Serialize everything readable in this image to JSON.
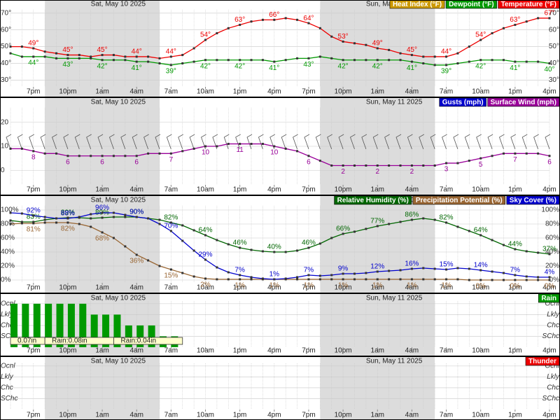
{
  "time_axis": {
    "categories": [
      null,
      null,
      "7pm",
      null,
      null,
      "10pm",
      null,
      null,
      "1am",
      null,
      null,
      "4am",
      null,
      null,
      "7am",
      null,
      null,
      "10am",
      null,
      null,
      "1pm",
      null,
      null,
      "4pm",
      null,
      null,
      "7pm",
      null,
      null,
      "10pm",
      null,
      null,
      "1am",
      null,
      null,
      "4am",
      null,
      null,
      "7am",
      null,
      null,
      "10am",
      null,
      null,
      "1pm",
      null,
      null,
      "4pm"
    ],
    "dates": [
      {
        "value": 7,
        "label": "Sat, May 10 2025"
      },
      {
        "value": 31,
        "label": "Sun, May 11 2025"
      }
    ],
    "night": [
      [
        3,
        13
      ],
      [
        27,
        37
      ]
    ]
  },
  "chart_data": [
    {
      "type": "line",
      "ylim": [
        26,
        72
      ],
      "grid": true,
      "right_axis": true,
      "yticks": [
        {
          "value": 30,
          "label": "30°"
        },
        {
          "value": 40,
          "label": "40°"
        },
        {
          "value": 50,
          "label": "50°"
        },
        {
          "value": 60,
          "label": "60°"
        },
        {
          "value": 70,
          "label": "70°"
        }
      ],
      "series": [
        {
          "name": "Heat Index (°F)",
          "color": "#cc9900",
          "values": [
            null,
            null,
            null,
            null,
            null,
            null,
            null,
            null,
            null,
            null,
            null,
            null,
            null,
            null,
            null,
            null,
            null,
            null,
            null,
            null,
            null,
            null,
            null,
            null,
            null,
            null,
            null,
            null,
            null,
            null,
            null,
            null,
            null,
            null,
            null,
            null,
            null,
            null,
            null,
            null,
            null,
            null,
            null,
            null,
            null,
            null,
            null,
            null
          ]
        },
        {
          "name": "Dewpoint (°F)",
          "color": "#009900",
          "label_side": "below",
          "values": [
            46,
            44,
            44,
            44,
            43,
            43,
            43,
            43,
            42,
            42,
            42,
            41,
            41,
            40,
            39,
            40,
            41,
            42,
            42,
            42,
            42,
            42,
            42,
            41,
            42,
            43,
            43,
            44,
            43,
            42,
            42,
            42,
            42,
            42,
            42,
            41,
            40,
            39,
            39,
            40,
            41,
            42,
            42,
            42,
            41,
            41,
            41,
            40
          ],
          "value_labels": [
            null,
            null,
            "44°",
            null,
            null,
            "43°",
            null,
            null,
            "42°",
            null,
            null,
            "41°",
            null,
            null,
            "39°",
            null,
            null,
            "42°",
            null,
            null,
            "42°",
            null,
            null,
            "41°",
            null,
            null,
            "43°",
            null,
            null,
            "42°",
            null,
            null,
            "42°",
            null,
            null,
            "41°",
            null,
            null,
            "39°",
            null,
            null,
            "42°",
            null,
            null,
            "41°",
            null,
            null,
            "40°"
          ]
        },
        {
          "name": "Temperature (°F)",
          "color": "#ee0000",
          "label_side": "above",
          "values": [
            50,
            50,
            49,
            47,
            46,
            45,
            45,
            44,
            45,
            45,
            44,
            44,
            44,
            43,
            44,
            45,
            49,
            54,
            58,
            61,
            63,
            65,
            66,
            66,
            67,
            66,
            64,
            61,
            56,
            53,
            52,
            51,
            49,
            48,
            46,
            45,
            44,
            44,
            44,
            46,
            50,
            54,
            58,
            61,
            63,
            65,
            67,
            67
          ],
          "value_labels": [
            null,
            null,
            "49°",
            null,
            null,
            "45°",
            null,
            null,
            "45°",
            null,
            null,
            "44°",
            null,
            null,
            "44°",
            null,
            null,
            "54°",
            null,
            null,
            "63°",
            null,
            null,
            "66°",
            null,
            null,
            "64°",
            null,
            null,
            "53°",
            null,
            null,
            "49°",
            null,
            null,
            "45°",
            null,
            null,
            "44°",
            null,
            null,
            "54°",
            null,
            null,
            "63°",
            null,
            null,
            "67°"
          ]
        }
      ]
    },
    {
      "type": "line",
      "ylim": [
        -6,
        26
      ],
      "grid": true,
      "right_axis": false,
      "barbs": true,
      "yticks": [
        0,
        10,
        20
      ],
      "series": [
        {
          "name": "Gusts (mph)",
          "color": "#0000cc",
          "values": [
            null,
            null,
            null,
            null,
            null,
            null,
            null,
            null,
            null,
            null,
            null,
            null,
            null,
            null,
            null,
            null,
            null,
            null,
            null,
            null,
            null,
            null,
            null,
            null,
            null,
            null,
            null,
            null,
            null,
            null,
            null,
            null,
            null,
            null,
            null,
            null,
            null,
            null,
            null,
            null,
            null,
            null,
            null,
            null,
            null,
            null,
            null,
            null
          ]
        },
        {
          "name": "Surface Wind (mph)",
          "color": "#990099",
          "label_side": "below",
          "values": [
            9,
            9,
            8,
            7,
            7,
            6,
            6,
            6,
            6,
            6,
            6,
            6,
            7,
            7,
            7,
            8,
            9,
            10,
            10,
            11,
            11,
            11,
            11,
            10,
            9,
            8,
            6,
            4,
            2,
            2,
            2,
            2,
            2,
            2,
            2,
            2,
            2,
            2,
            3,
            3,
            4,
            5,
            6,
            7,
            7,
            7,
            7,
            6
          ],
          "value_labels": [
            null,
            null,
            "8",
            null,
            null,
            "6",
            null,
            null,
            "6",
            null,
            null,
            "6",
            null,
            null,
            "7",
            null,
            null,
            "10",
            null,
            null,
            "11",
            null,
            null,
            "10",
            null,
            null,
            "6",
            null,
            null,
            "2",
            null,
            null,
            "2",
            null,
            null,
            "2",
            null,
            null,
            "3",
            null,
            null,
            "5",
            null,
            null,
            "7",
            null,
            null,
            "6"
          ]
        }
      ]
    },
    {
      "type": "line",
      "ylim": [
        -4,
        106
      ],
      "grid": true,
      "right_axis": true,
      "yticks": [
        {
          "value": 0,
          "label": "0%"
        },
        {
          "value": 20,
          "label": "20%"
        },
        {
          "value": 40,
          "label": "40%"
        },
        {
          "value": 60,
          "label": "60%"
        },
        {
          "value": 80,
          "label": "80%"
        },
        {
          "value": 100,
          "label": "100%"
        }
      ],
      "series": [
        {
          "name": "Relative Humidity (%)",
          "color": "#006600",
          "label_side": "above",
          "values": [
            85,
            83,
            83,
            86,
            88,
            89,
            89,
            88,
            89,
            90,
            90,
            90,
            88,
            86,
            82,
            78,
            71,
            64,
            57,
            51,
            46,
            43,
            41,
            40,
            40,
            42,
            46,
            52,
            60,
            66,
            69,
            73,
            77,
            80,
            83,
            86,
            88,
            86,
            82,
            76,
            70,
            64,
            57,
            50,
            44,
            41,
            39,
            37
          ],
          "value_labels": [
            null,
            null,
            "83%",
            null,
            null,
            "89%",
            null,
            null,
            "89%",
            null,
            null,
            "90%",
            null,
            null,
            "82%",
            null,
            null,
            "64%",
            null,
            null,
            "46%",
            null,
            null,
            "40%",
            null,
            null,
            "46%",
            null,
            null,
            "66%",
            null,
            null,
            "77%",
            null,
            null,
            "86%",
            null,
            null,
            "82%",
            null,
            null,
            "64%",
            null,
            null,
            "44%",
            null,
            null,
            "37%"
          ]
        },
        {
          "name": "Precipitation Potential (%)",
          "color": "#996633",
          "label_side": "below",
          "values": [
            80,
            81,
            81,
            82,
            82,
            82,
            80,
            76,
            68,
            60,
            48,
            36,
            28,
            20,
            15,
            10,
            5,
            2,
            1,
            1,
            1,
            1,
            1,
            1,
            1,
            1,
            1,
            1,
            1,
            1,
            1,
            1,
            1,
            1,
            1,
            1,
            1,
            1,
            1,
            1,
            0,
            0,
            0,
            0,
            0,
            0,
            0,
            0
          ],
          "value_labels": [
            null,
            null,
            "81%",
            null,
            null,
            "82%",
            null,
            null,
            "68%",
            null,
            null,
            "36%",
            null,
            null,
            "15%",
            null,
            null,
            "2%",
            null,
            null,
            "1%",
            null,
            null,
            "1%",
            null,
            null,
            "1%",
            null,
            null,
            "1%",
            null,
            null,
            "1%",
            null,
            null,
            "1%",
            null,
            null,
            "1%",
            null,
            null,
            "0%",
            null,
            null,
            "0%",
            null,
            null,
            "0%"
          ]
        },
        {
          "name": "Sky Cover (%)",
          "color": "#0000cc",
          "label_side": "above",
          "values": [
            96,
            95,
            92,
            90,
            88,
            88,
            90,
            94,
            96,
            96,
            93,
            90,
            88,
            80,
            70,
            56,
            42,
            29,
            18,
            11,
            7,
            4,
            2,
            1,
            2,
            4,
            7,
            6,
            7,
            9,
            9,
            10,
            12,
            13,
            14,
            16,
            17,
            16,
            15,
            17,
            16,
            14,
            12,
            10,
            7,
            5,
            4,
            4
          ],
          "value_labels": [
            null,
            null,
            "92%",
            null,
            null,
            "88%",
            null,
            null,
            "96%",
            null,
            null,
            "90%",
            null,
            null,
            "70%",
            null,
            null,
            "29%",
            null,
            null,
            "7%",
            null,
            null,
            "1%",
            null,
            null,
            "7%",
            null,
            null,
            "9%",
            null,
            null,
            "12%",
            null,
            null,
            "16%",
            null,
            null,
            "15%",
            null,
            null,
            "14%",
            null,
            null,
            "7%",
            null,
            null,
            "4%"
          ]
        }
      ]
    },
    {
      "type": "bar",
      "ylim": [
        0,
        4.25
      ],
      "grid": true,
      "right_axis": true,
      "yticks": [
        {
          "value": 1,
          "label": "SChc"
        },
        {
          "value": 2,
          "label": "Chc"
        },
        {
          "value": 3,
          "label": "Lkly"
        },
        {
          "value": 4,
          "label": "Ocnl"
        }
      ],
      "series": [
        {
          "name": "Rain",
          "color": "#009900",
          "values": [
            4,
            4,
            4,
            4,
            4,
            4,
            4,
            3,
            3,
            3,
            2,
            2,
            2,
            1,
            1,
            null,
            null,
            null,
            null,
            null,
            null,
            null,
            null,
            null,
            null,
            null,
            null,
            null,
            null,
            null,
            null,
            null,
            null,
            null,
            null,
            null,
            null,
            null,
            null,
            null,
            null,
            null,
            null,
            null,
            null,
            null,
            null,
            null
          ]
        }
      ],
      "totals": [
        {
          "start": 0,
          "end": 3,
          "value": 0.07,
          "label": "0.07in"
        },
        {
          "start": 3,
          "end": 9,
          "value": 0.08,
          "label": "Rain:0.08in"
        },
        {
          "start": 9,
          "end": 15,
          "value": 0.04,
          "label": "Rain:0.04in"
        }
      ]
    },
    {
      "type": "bar",
      "ylim": [
        0,
        4.25
      ],
      "grid": true,
      "right_axis": true,
      "yticks": [
        {
          "value": 1,
          "label": "SChc"
        },
        {
          "value": 2,
          "label": "Chc"
        },
        {
          "value": 3,
          "label": "Lkly"
        },
        {
          "value": 4,
          "label": "Ocnl"
        }
      ],
      "series": [
        {
          "name": "Thunder",
          "color": "#ee0000",
          "values": [
            null,
            null,
            null,
            null,
            null,
            null,
            null,
            null,
            null,
            null,
            null,
            null,
            null,
            null,
            null,
            null,
            null,
            null,
            null,
            null,
            null,
            null,
            null,
            null,
            null,
            null,
            null,
            null,
            null,
            null,
            null,
            null,
            null,
            null,
            null,
            null,
            null,
            null,
            null,
            null,
            null,
            null,
            null,
            null,
            null,
            null,
            null,
            null
          ]
        }
      ]
    }
  ]
}
